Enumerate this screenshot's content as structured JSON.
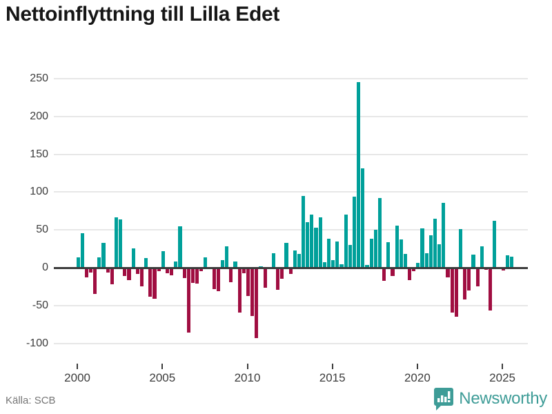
{
  "title": "Nettoinflyttning till Lilla Edet",
  "source": "Källa: SCB",
  "branding": {
    "name": "Newsworthy",
    "icon": "newsworthy-speech-bubble-chart-icon"
  },
  "colors": {
    "positive": "#00a09a",
    "negative": "#a00e41",
    "grid": "#e7e7e7",
    "axis": "#3b3b3b",
    "tick_text": "#3c3c3c",
    "title_text": "#161616",
    "muted_text": "#757575",
    "brand_teal": "#3e9c97"
  },
  "chart_data": {
    "type": "bar",
    "title": "Nettoinflyttning till Lilla Edet",
    "xlabel": "",
    "ylabel": "",
    "ylim": [
      -115,
      260
    ],
    "y_ticks": [
      250,
      200,
      150,
      100,
      50,
      0,
      -50,
      -100
    ],
    "x_tick_labels": [
      "2000",
      "2005",
      "2010",
      "2015",
      "2020",
      "2025"
    ],
    "grid": "horizontal",
    "legend": "none",
    "unit": "persons per quarter",
    "categories": [
      "2000Q1",
      "2000Q2",
      "2000Q3",
      "2000Q4",
      "2001Q1",
      "2001Q2",
      "2001Q3",
      "2001Q4",
      "2002Q1",
      "2002Q2",
      "2002Q3",
      "2002Q4",
      "2003Q1",
      "2003Q2",
      "2003Q3",
      "2003Q4",
      "2004Q1",
      "2004Q2",
      "2004Q3",
      "2004Q4",
      "2005Q1",
      "2005Q2",
      "2005Q3",
      "2005Q4",
      "2006Q1",
      "2006Q2",
      "2006Q3",
      "2006Q4",
      "2007Q1",
      "2007Q2",
      "2007Q3",
      "2007Q4",
      "2008Q1",
      "2008Q2",
      "2008Q3",
      "2008Q4",
      "2009Q1",
      "2009Q2",
      "2009Q3",
      "2009Q4",
      "2010Q1",
      "2010Q2",
      "2010Q3",
      "2010Q4",
      "2011Q1",
      "2011Q2",
      "2011Q3",
      "2011Q4",
      "2012Q1",
      "2012Q2",
      "2012Q3",
      "2012Q4",
      "2013Q1",
      "2013Q2",
      "2013Q3",
      "2013Q4",
      "2014Q1",
      "2014Q2",
      "2014Q3",
      "2014Q4",
      "2015Q1",
      "2015Q2",
      "2015Q3",
      "2015Q4",
      "2016Q1",
      "2016Q2",
      "2016Q3",
      "2016Q4",
      "2017Q1",
      "2017Q2",
      "2017Q3",
      "2017Q4",
      "2018Q1",
      "2018Q2",
      "2018Q3",
      "2018Q4",
      "2019Q1",
      "2019Q2",
      "2019Q3",
      "2019Q4",
      "2020Q1",
      "2020Q2",
      "2020Q3",
      "2020Q4",
      "2021Q1",
      "2021Q2",
      "2021Q3",
      "2021Q4",
      "2022Q1",
      "2022Q2",
      "2022Q3",
      "2022Q4",
      "2023Q1",
      "2023Q2",
      "2023Q3",
      "2023Q4",
      "2024Q1",
      "2024Q2",
      "2024Q3",
      "2024Q4",
      "2025Q1",
      "2025Q2",
      "2025Q3"
    ],
    "values": [
      14,
      46,
      -13,
      -6,
      -35,
      14,
      33,
      -6,
      -22,
      67,
      64,
      -11,
      -16,
      26,
      -8,
      -25,
      13,
      -38,
      -41,
      -5,
      22,
      -7,
      -10,
      8,
      55,
      -14,
      -86,
      -20,
      -21,
      -5,
      14,
      0,
      -28,
      -31,
      10,
      28,
      -19,
      8,
      -59,
      -7,
      -37,
      -64,
      -93,
      2,
      -26,
      0,
      19,
      -29,
      -15,
      33,
      -8,
      23,
      18,
      95,
      60,
      70,
      53,
      67,
      7,
      38,
      10,
      35,
      5,
      70,
      30,
      94,
      245,
      131,
      4,
      38,
      50,
      92,
      -17,
      34,
      -11,
      56,
      37,
      18,
      -16,
      -5,
      6,
      52,
      19,
      43,
      65,
      31,
      86,
      -13,
      -59,
      -65,
      51,
      -42,
      -30,
      17,
      -25,
      28,
      -3,
      -57,
      62,
      0,
      -4,
      16,
      15
    ]
  }
}
